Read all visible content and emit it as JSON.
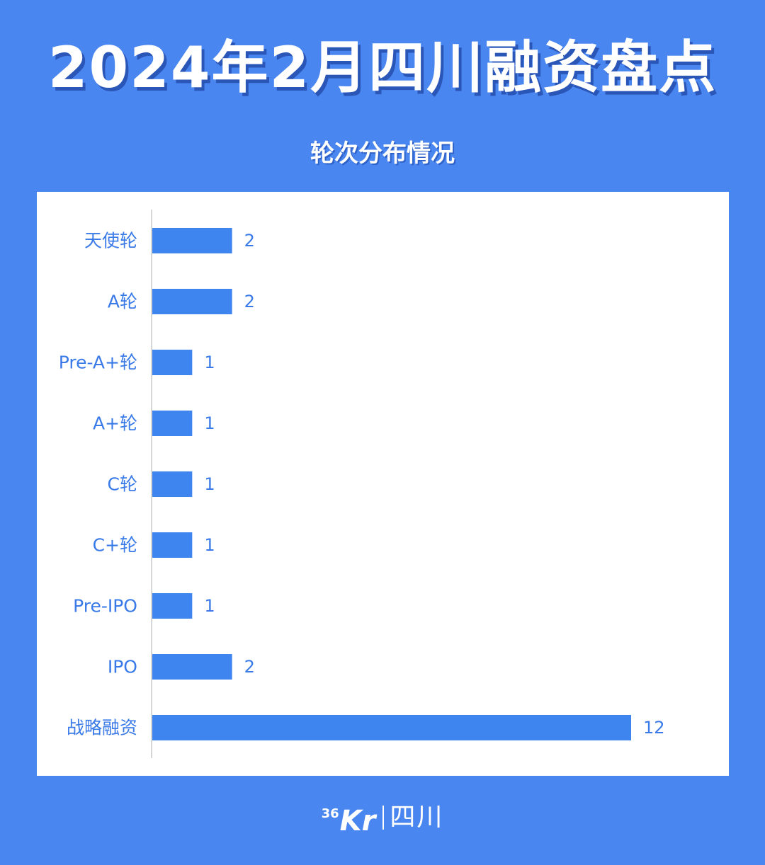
{
  "header": {
    "title": "2024年2月四川融资盘点",
    "subtitle": "轮次分布情况"
  },
  "footer": {
    "logo_superscript": "36",
    "logo_letters": "Kr",
    "logo_region": "四川"
  },
  "colors": {
    "background": "#4a86f0",
    "panel": "#ffffff",
    "bar": "#3f85f0",
    "label": "#3a7ae8",
    "axis": "#c8c8c8"
  },
  "chart_data": {
    "type": "bar",
    "orientation": "horizontal",
    "title": "轮次分布情况",
    "xlabel": "",
    "ylabel": "",
    "categories": [
      "天使轮",
      "A轮",
      "Pre-A+轮",
      "A+轮",
      "C轮",
      "C+轮",
      "Pre-IPO",
      "IPO",
      "战略融资"
    ],
    "values": [
      2,
      2,
      1,
      1,
      1,
      1,
      1,
      2,
      12
    ],
    "data_labels": [
      "2",
      "2",
      "1",
      "1",
      "1",
      "1",
      "1",
      "2",
      "12"
    ],
    "xlim": [
      0,
      12
    ],
    "grid": false,
    "legend": "none"
  }
}
